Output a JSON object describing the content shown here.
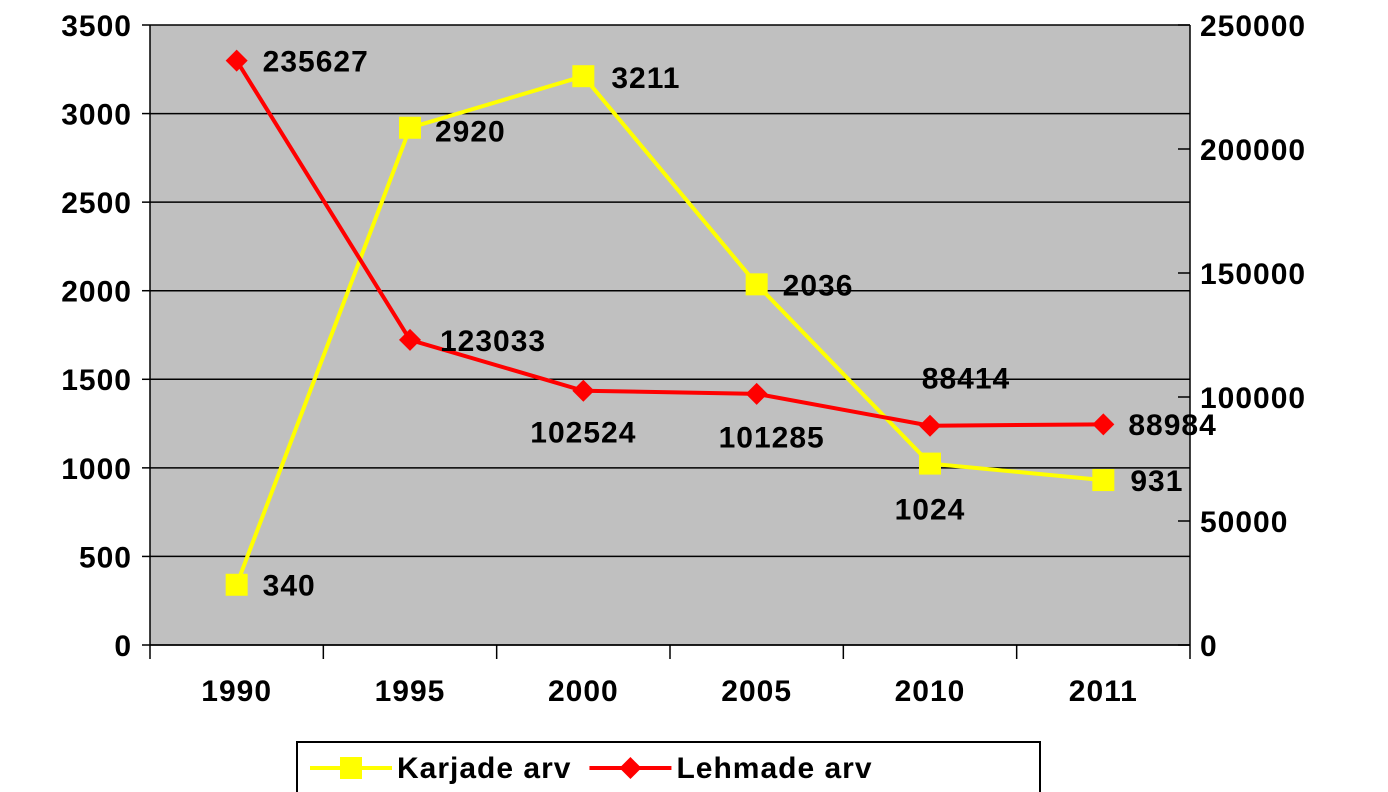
{
  "chart_data": {
    "type": "line",
    "categories": [
      "1990",
      "1995",
      "2000",
      "2005",
      "2010",
      "2011"
    ],
    "series": [
      {
        "name": "Karjade arv",
        "color": "#ffff00",
        "marker": "square",
        "values": [
          340,
          2920,
          3211,
          2036,
          1024,
          931
        ]
      },
      {
        "name": "Lehmade arv",
        "color": "#ff0000",
        "marker": "diamond",
        "axis": "y2",
        "values": [
          235627,
          123033,
          102524,
          101285,
          88414,
          88984
        ]
      }
    ],
    "ylim": [
      0,
      3500
    ],
    "yticks": [
      0,
      500,
      1000,
      1500,
      2000,
      2500,
      3000,
      3500
    ],
    "y2lim": [
      0,
      250000
    ],
    "y2ticks": [
      0,
      50000,
      100000,
      150000,
      200000,
      250000
    ],
    "grid": true,
    "plot_background": "#c0c0c0",
    "legend": "bottom"
  }
}
